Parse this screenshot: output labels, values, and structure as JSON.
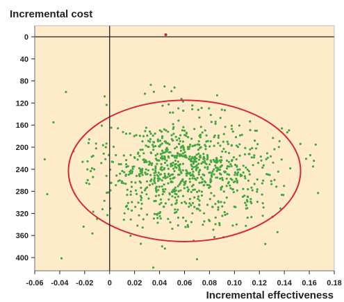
{
  "chart_data": {
    "type": "scatter",
    "ylabel": "Incremental cost",
    "xlabel": "Incremental effectiveness",
    "xlim": [
      -0.06,
      0.18
    ],
    "ylim": [
      0,
      420
    ],
    "y_inverted": true,
    "x_ticks": [
      "-0.06",
      "-0.04",
      "-0.02",
      "0",
      "0.02",
      "0.04",
      "0.06",
      "0.08",
      "0.10",
      "0.12",
      "0.14",
      "0.16",
      "0.18"
    ],
    "x_tick_values": [
      -0.06,
      -0.04,
      -0.02,
      0,
      0.02,
      0.04,
      0.06,
      0.08,
      0.1,
      0.12,
      0.14,
      0.16,
      0.18
    ],
    "y_ticks": [
      "0",
      "40",
      "80",
      "120",
      "160",
      "200",
      "240",
      "280",
      "320",
      "360",
      "400"
    ],
    "y_tick_values": [
      0,
      40,
      80,
      120,
      160,
      200,
      240,
      280,
      320,
      360,
      400
    ],
    "point_estimate": {
      "x": 0.045,
      "y": 0
    },
    "ellipse_95": {
      "center_x": 0.06,
      "center_y": 243,
      "half_width_x": 0.093,
      "half_height_y": 128
    },
    "cloud_stats": {
      "mean_x": 0.062,
      "sd_x": 0.034,
      "mean_y": 243,
      "sd_y": 50,
      "n_points": 900
    },
    "sample_points": [
      {
        "x": -0.035,
        "y": 100
      },
      {
        "x": 0.033,
        "y": 87
      },
      {
        "x": 0.044,
        "y": 90
      },
      {
        "x": 0.052,
        "y": 92
      },
      {
        "x": -0.045,
        "y": 155
      },
      {
        "x": -0.052,
        "y": 222
      },
      {
        "x": -0.05,
        "y": 285
      },
      {
        "x": 0.035,
        "y": 418
      },
      {
        "x": 0.07,
        "y": 403
      },
      {
        "x": 0.163,
        "y": 235
      },
      {
        "x": 0.167,
        "y": 283
      },
      {
        "x": 0.025,
        "y": 375
      }
    ],
    "colors": {
      "background": "#fdebc9",
      "points": "#43a642",
      "ellipse": "#d7282f",
      "axes": "#231f20",
      "point_estimate": "#c0282d"
    },
    "grid": false
  }
}
